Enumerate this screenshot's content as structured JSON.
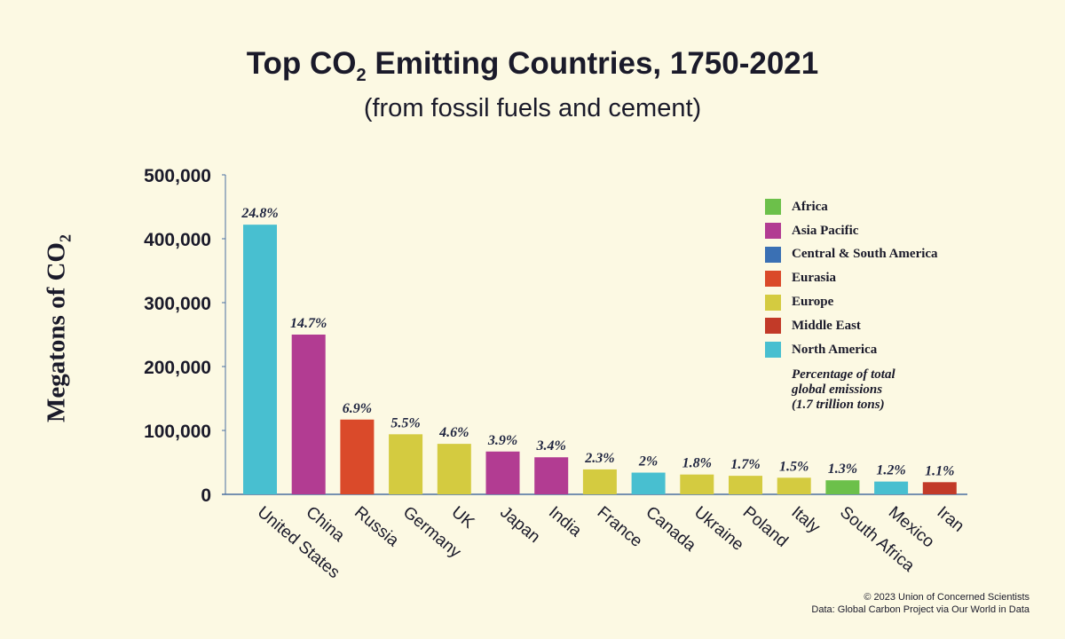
{
  "chart_data": {
    "type": "bar",
    "title": {
      "pre": "Top CO",
      "sub": "2",
      "post": " Emitting Countries, 1750-2021"
    },
    "subtitle": "(from fossil fuels and cement)",
    "ylabel": {
      "pre": "Megatons of CO",
      "sub": "2"
    },
    "xlabel": "",
    "ylim": [
      0,
      500000
    ],
    "yticks": [
      0,
      100000,
      200000,
      300000,
      400000,
      500000
    ],
    "ytick_labels": [
      "0",
      "100,000",
      "200,000",
      "300,000",
      "400,000",
      "500,000"
    ],
    "grid": false,
    "categories": [
      "United States",
      "China",
      "Russia",
      "Germany",
      "UK",
      "Japan",
      "India",
      "France",
      "Canada",
      "Ukraine",
      "Poland",
      "Italy",
      "South Africa",
      "Mexico",
      "Iran"
    ],
    "values": [
      422000,
      250000,
      117000,
      94000,
      79000,
      67000,
      58000,
      39000,
      34000,
      31000,
      29000,
      26000,
      22000,
      20000,
      19000
    ],
    "regions": [
      "North America",
      "Asia Pacific",
      "Eurasia",
      "Europe",
      "Europe",
      "Asia Pacific",
      "Asia Pacific",
      "Europe",
      "North America",
      "Europe",
      "Europe",
      "Europe",
      "Africa",
      "North America",
      "Middle East"
    ],
    "data_labels": [
      "24.8%",
      "14.7%",
      "6.9%",
      "5.5%",
      "4.6%",
      "3.9%",
      "3.4%",
      "2.3%",
      "2%",
      "1.8%",
      "1.7%",
      "1.5%",
      "1.3%",
      "1.2%",
      "1.1%"
    ],
    "legend_placement": "top-right",
    "legend": [
      {
        "name": "Africa",
        "color": "#6cc04a"
      },
      {
        "name": "Asia Pacific",
        "color": "#b23c92"
      },
      {
        "name": "Central & South America",
        "color": "#3a70b4"
      },
      {
        "name": "Eurasia",
        "color": "#da4a2a"
      },
      {
        "name": "Europe",
        "color": "#d4cb40"
      },
      {
        "name": "Middle East",
        "color": "#c23a28"
      },
      {
        "name": "North America",
        "color": "#48bfd0"
      }
    ],
    "legend_note": [
      "Percentage of total",
      "global emissions",
      "(1.7 trillion tons)"
    ]
  },
  "credit": [
    "© 2023 Union of Concerned Scientists",
    "Data: Global Carbon Project via Our World in Data"
  ]
}
